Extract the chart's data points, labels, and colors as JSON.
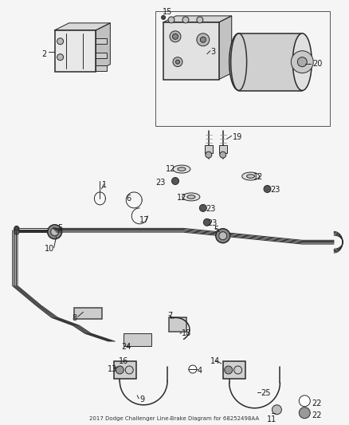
{
  "title": "2017 Dodge Challenger Line-Brake Diagram for 68252498AA",
  "bg_color": "#f5f5f5",
  "line_color": "#2a2a2a",
  "figsize": [
    4.38,
    5.33
  ],
  "dpi": 100
}
